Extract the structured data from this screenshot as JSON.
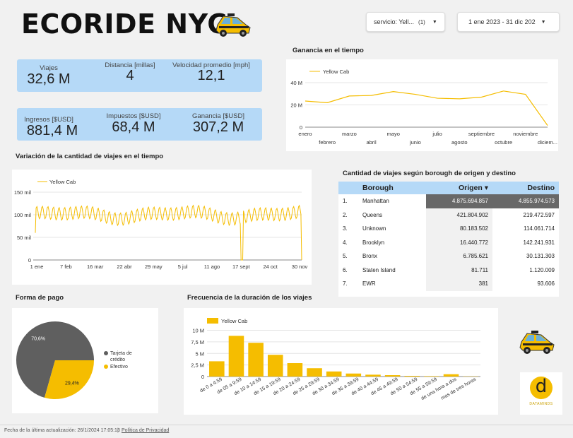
{
  "header": {
    "title": "ECORIDE NYC"
  },
  "controls": {
    "service_label": "servicio: Yell...",
    "service_count": "(1)",
    "date_range": "1 ene 2023 - 31 dic 202"
  },
  "kpis": [
    {
      "label": "Viajes",
      "value": "32,6 M"
    },
    {
      "label": "Distancia [millas]",
      "value": "4"
    },
    {
      "label": "Velocidad promedio [mph]",
      "value": "12,1"
    },
    {
      "label": "Ingresos [$USD]",
      "value": "881,4 M"
    },
    {
      "label": "Impuestos [$USD]",
      "value": "68,4 M"
    },
    {
      "label": "Ganancia [$USD]",
      "value": "307,2 M"
    }
  ],
  "colors": {
    "accent": "#f5bd00",
    "kpi_bg": "#b5d9f7",
    "pie_dark": "#5f5f5f",
    "heat": "#686868"
  },
  "chart_data": [
    {
      "id": "ganancia",
      "type": "line",
      "title": "Ganancia en el tiempo",
      "legend": "Yellow Cab",
      "ylim": [
        0,
        40
      ],
      "yticks": [
        0,
        20,
        40
      ],
      "ytick_labels": [
        "0",
        "20 M",
        "40 M"
      ],
      "categories": [
        "enero",
        "febrero",
        "marzo",
        "abril",
        "mayo",
        "junio",
        "julio",
        "agosto",
        "septiembre",
        "octubre",
        "noviembre",
        "diciem..."
      ],
      "values": [
        23.5,
        22,
        28,
        28.5,
        32,
        29.5,
        26,
        25.5,
        27,
        32.5,
        29.5,
        1.5
      ]
    },
    {
      "id": "viajes",
      "type": "line",
      "title": "Variación de la cantidad de viajes en el tiempo",
      "legend": "Yellow Cab",
      "ylim": [
        0,
        150
      ],
      "yticks": [
        0,
        50,
        100,
        150
      ],
      "ytick_labels": [
        "0",
        "50 mil",
        "100 mil",
        "150 mil"
      ],
      "xtick_labels": [
        "1 ene",
        "7 feb",
        "16 mar",
        "22 abr",
        "29 may",
        "5 jul",
        "11 ago",
        "17 sept",
        "24 oct",
        "30 nov"
      ],
      "base": 100,
      "amplitude": 14,
      "period_days": 7
    },
    {
      "id": "forma_pago",
      "type": "pie",
      "title": "Forma de pago",
      "labels": [
        "Tarjeta de crédito",
        "Efectivo"
      ],
      "values": [
        70.6,
        29.4
      ],
      "value_labels": [
        "70,6%",
        "29,4%"
      ]
    },
    {
      "id": "duracion",
      "type": "bar",
      "title": "Frecuencia de la duración de los viajes",
      "legend": "Yellow Cab",
      "ylim": [
        0,
        11
      ],
      "yticks": [
        0,
        2.5,
        5,
        7.5,
        10
      ],
      "ytick_labels": [
        "0",
        "2,5 M",
        "5 M",
        "7,5 M",
        "10 M"
      ],
      "categories": [
        "de 0 a 4:59",
        "de 05 a 9:59",
        "de 10 a 14:59",
        "de 15 a 19:59",
        "de 20 a 24:59",
        "de 25 a 29:59",
        "de 30 a 34:59",
        "de 35 a 39:59",
        "de 40 a 44:59",
        "de 45 a 49:59",
        "de 50 a 54:59",
        "de 55 a 59:59",
        "de una hora a dos",
        "mas de tres horas"
      ],
      "values": [
        3.3,
        8.8,
        7.3,
        4.7,
        2.9,
        1.8,
        1.1,
        0.65,
        0.4,
        0.3,
        0.15,
        0.1,
        0.5,
        0.05
      ]
    },
    {
      "id": "borough",
      "type": "table",
      "title": "Cantidad de viajes según borough de origen y destino",
      "columns": [
        "Borough",
        "Origen ▾",
        "Destino"
      ],
      "rows": [
        [
          "1.",
          "Manhattan",
          "4.875.694.857",
          "4.855.974.573"
        ],
        [
          "2.",
          "Queens",
          "421.804.902",
          "219.472.597"
        ],
        [
          "3.",
          "Unknown",
          "80.183.502",
          "114.061.714"
        ],
        [
          "4.",
          "Brooklyn",
          "16.440.772",
          "142.241.931"
        ],
        [
          "5.",
          "Bronx",
          "6.785.621",
          "30.131.303"
        ],
        [
          "6.",
          "Staten Island",
          "81.711",
          "1.120.009"
        ],
        [
          "7.",
          "EWR",
          "381",
          "93.606"
        ]
      ]
    }
  ],
  "borough_table": {
    "title": "Cantidad de viajes según borough de origen y destino",
    "headers": {
      "borough": "Borough",
      "origen": "Origen ▾",
      "destino": "Destino"
    },
    "rows": [
      {
        "n": "1.",
        "name": "Manhattan",
        "origen": "4.875.694.857",
        "destino": "4.855.974.573"
      },
      {
        "n": "2.",
        "name": "Queens",
        "origen": "421.804.902",
        "destino": "219.472.597"
      },
      {
        "n": "3.",
        "name": "Unknown",
        "origen": "80.183.502",
        "destino": "114.061.714"
      },
      {
        "n": "4.",
        "name": "Brooklyn",
        "origen": "16.440.772",
        "destino": "142.241.931"
      },
      {
        "n": "5.",
        "name": "Bronx",
        "origen": "6.785.621",
        "destino": "30.131.303"
      },
      {
        "n": "6.",
        "name": "Staten Island",
        "origen": "81.711",
        "destino": "1.120.009"
      },
      {
        "n": "7.",
        "name": "EWR",
        "origen": "381",
        "destino": "93.606"
      }
    ]
  },
  "logo": {
    "letter": "d",
    "brand": "DATAMINDS"
  },
  "footer": {
    "updated": "Fecha de la última actualización: 26/1/2024 17:05:13",
    "sep": "|",
    "privacy": "Política de Privacidad"
  }
}
